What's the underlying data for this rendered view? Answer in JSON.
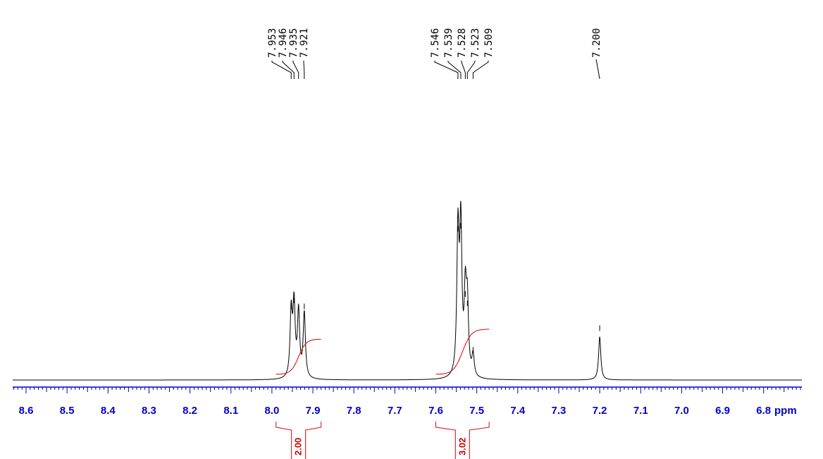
{
  "colors": {
    "spectrum": "#000000",
    "axis": "#0000cc",
    "integral": "#e00000",
    "integral_label": "#cc0000"
  },
  "chart_data": {
    "type": "line",
    "title": "",
    "xlabel": "ppm",
    "ylabel": "",
    "xlim": [
      8.65,
      6.68
    ],
    "x_reversed": true,
    "grid": false,
    "x_ticks": [
      "8.6",
      "8.5",
      "8.4",
      "8.3",
      "8.2",
      "8.1",
      "8.0",
      "7.9",
      "7.8",
      "7.7",
      "7.6",
      "7.5",
      "7.4",
      "7.3",
      "7.2",
      "7.1",
      "7.0",
      "6.9",
      "6.8"
    ],
    "peak_labels": [
      "7.953",
      "7.946",
      "7.935",
      "7.921",
      "7.546",
      "7.539",
      "7.528",
      "7.523",
      "7.509",
      "7.200"
    ],
    "peaks": [
      {
        "ppm": 7.953,
        "intensity": 0.21
      },
      {
        "ppm": 7.946,
        "intensity": 0.23
      },
      {
        "ppm": 7.935,
        "intensity": 0.21
      },
      {
        "ppm": 7.921,
        "intensity": 0.21
      },
      {
        "ppm": 7.546,
        "intensity": 0.46
      },
      {
        "ppm": 7.539,
        "intensity": 0.47
      },
      {
        "ppm": 7.528,
        "intensity": 0.25
      },
      {
        "ppm": 7.523,
        "intensity": 0.22
      },
      {
        "ppm": 7.509,
        "intensity": 0.07
      },
      {
        "ppm": 7.2,
        "intensity": 0.14
      }
    ],
    "integrals": [
      {
        "label": "2.00",
        "from_ppm": 7.99,
        "to_ppm": 7.88
      },
      {
        "label": "3.02",
        "from_ppm": 7.6,
        "to_ppm": 7.47
      }
    ]
  }
}
